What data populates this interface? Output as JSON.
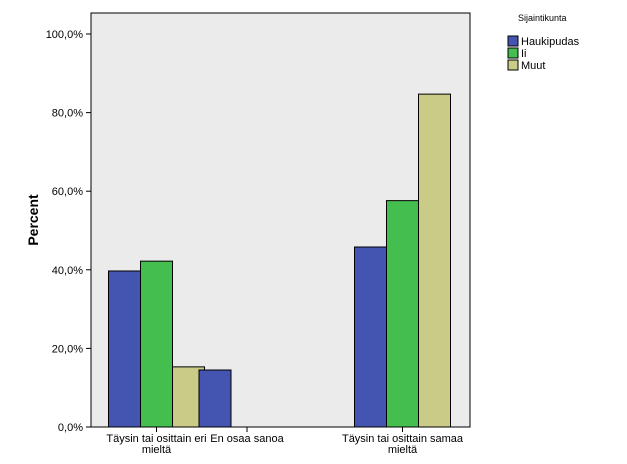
{
  "chart_data": {
    "type": "bar",
    "title": "",
    "xlabel": "",
    "ylabel": "Percent",
    "ylim": [
      0,
      100
    ],
    "yticks": [
      0,
      20,
      40,
      60,
      80,
      100
    ],
    "ytick_labels": [
      "0,0%",
      "20,0%",
      "40,0%",
      "60,0%",
      "80,0%",
      "100,0%"
    ],
    "categories": [
      [
        "Täysin tai osittain eri",
        "mieltä"
      ],
      [
        "En osaa sanoa"
      ],
      [
        "Täysin tai osittain samaa",
        "mieltä"
      ]
    ],
    "legend_title": "Sijaintikunta",
    "legend_position": "top-right-outside",
    "plot_background": "#ebebeb",
    "series": [
      {
        "name": "Haukipudas",
        "color": "#4355b0",
        "values": [
          39.7,
          14.5,
          45.8
        ]
      },
      {
        "name": "Ii",
        "color": "#44be4f",
        "values": [
          42.2,
          0,
          57.6
        ]
      },
      {
        "name": "Muut",
        "color": "#cbcb88",
        "values": [
          15.3,
          0,
          84.7
        ]
      }
    ]
  }
}
